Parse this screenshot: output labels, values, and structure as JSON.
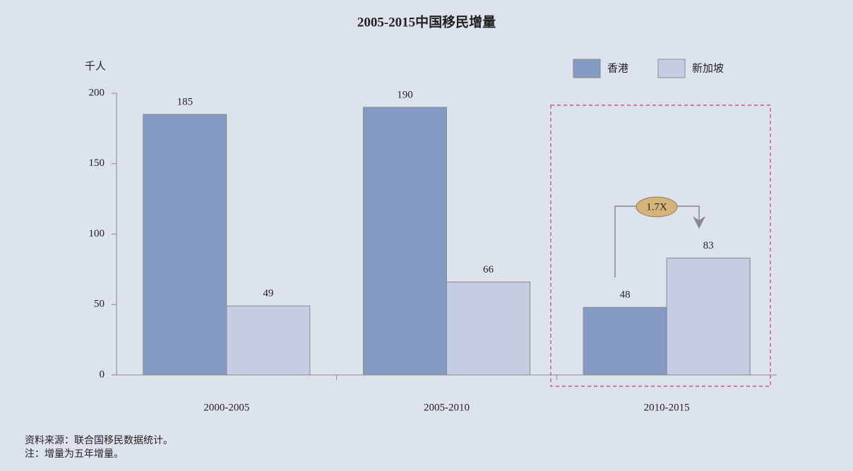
{
  "chart_data": {
    "type": "bar",
    "title": "2005-2015中国移民增量",
    "y_axis_label": "千人",
    "categories": [
      "2000-2005",
      "2005-2010",
      "2010-2015"
    ],
    "series": [
      {
        "name": "香港",
        "color": "#8499c4",
        "values": [
          185,
          190,
          48
        ]
      },
      {
        "name": "新加坡",
        "color": "#c5cde2",
        "values": [
          49,
          66,
          83
        ]
      }
    ],
    "ylim": [
      0,
      200
    ],
    "yticks": [
      0,
      50,
      100,
      150,
      200
    ],
    "annotation": "1.7X",
    "source": "资料来源：联合国移民数据统计。",
    "note": "注：增量为五年增量。"
  }
}
